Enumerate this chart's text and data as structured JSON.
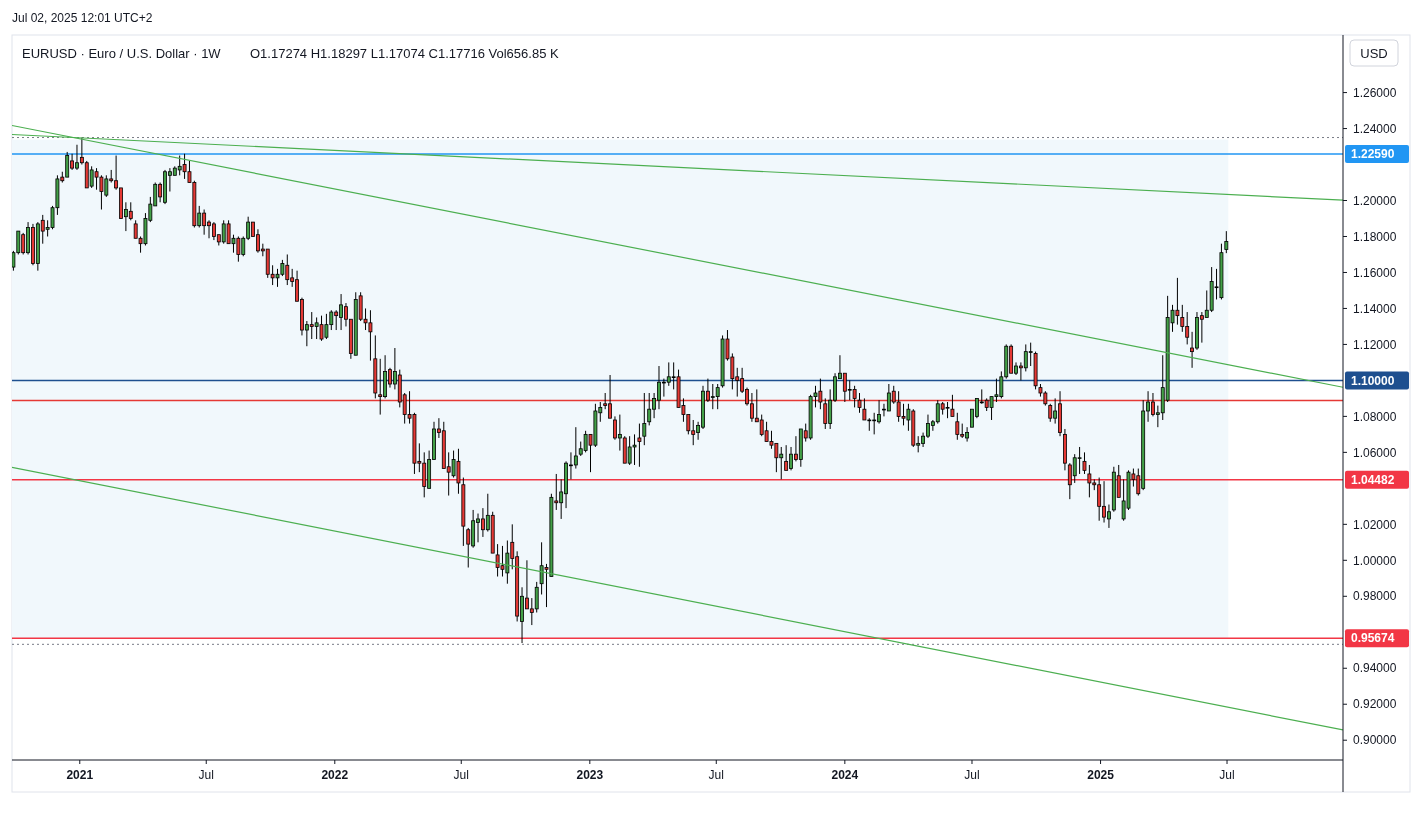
{
  "chart_data": {
    "type": "candlestick",
    "title": "EURUSD · Euro / U.S. Dollar · 1W",
    "subtitle": "O1.17274 H1.18297 L1.17074 C1.17716 Vol656.85 K",
    "ylabel": "USD",
    "annotations": [
      "Jul 02, 2025 12:01 UTC+2"
    ],
    "xlim": [
      "2020-09-26",
      "2025-12-14"
    ],
    "xticks": [
      {
        "value": "2021-01-01",
        "label": "2021"
      },
      {
        "value": "2021-07-01",
        "label": "Jul"
      },
      {
        "value": "2022-01-01",
        "label": "2022"
      },
      {
        "value": "2022-07-01",
        "label": "Jul"
      },
      {
        "value": "2023-01-01",
        "label": "2023"
      },
      {
        "value": "2023-07-01",
        "label": "Jul"
      },
      {
        "value": "2024-01-01",
        "label": "2024"
      },
      {
        "value": "2024-07-01",
        "label": "Jul"
      },
      {
        "value": "2025-01-01",
        "label": "2025"
      },
      {
        "value": "2025-07-01",
        "label": "Jul"
      }
    ],
    "ylim": [
      0.889,
      1.292
    ],
    "yticks": [
      {
        "value": 0.9,
        "label": "0.90000"
      },
      {
        "value": 0.92,
        "label": "0.92000"
      },
      {
        "value": 0.94,
        "label": "0.94000"
      },
      {
        "value": 0.98,
        "label": "0.98000"
      },
      {
        "value": 1.0,
        "label": "1.00000"
      },
      {
        "value": 1.02,
        "label": "1.02000"
      },
      {
        "value": 1.06,
        "label": "1.06000"
      },
      {
        "value": 1.08,
        "label": "1.08000"
      },
      {
        "value": 1.12,
        "label": "1.12000"
      },
      {
        "value": 1.14,
        "label": "1.14000"
      },
      {
        "value": 1.16,
        "label": "1.16000"
      },
      {
        "value": 1.18,
        "label": "1.18000"
      },
      {
        "value": 1.2,
        "label": "1.20000"
      },
      {
        "value": 1.24,
        "label": "1.24000"
      },
      {
        "value": 1.26,
        "label": "1.26000"
      }
    ],
    "x": [
      "2020-09-28",
      "2020-10-05",
      "2020-10-12",
      "2020-10-19",
      "2020-10-26",
      "2020-11-02",
      "2020-11-09",
      "2020-11-16",
      "2020-11-23",
      "2020-11-30",
      "2020-12-07",
      "2020-12-14",
      "2020-12-21",
      "2020-12-28",
      "2021-01-04",
      "2021-01-11",
      "2021-01-18",
      "2021-01-25",
      "2021-02-01",
      "2021-02-08",
      "2021-02-15",
      "2021-02-22",
      "2021-03-01",
      "2021-03-08",
      "2021-03-15",
      "2021-03-22",
      "2021-03-29",
      "2021-04-05",
      "2021-04-12",
      "2021-04-19",
      "2021-04-26",
      "2021-05-03",
      "2021-05-10",
      "2021-05-17",
      "2021-05-24",
      "2021-05-31",
      "2021-06-07",
      "2021-06-14",
      "2021-06-21",
      "2021-06-28",
      "2021-07-05",
      "2021-07-12",
      "2021-07-19",
      "2021-07-26",
      "2021-08-02",
      "2021-08-09",
      "2021-08-16",
      "2021-08-23",
      "2021-08-30",
      "2021-09-06",
      "2021-09-13",
      "2021-09-20",
      "2021-09-27",
      "2021-10-04",
      "2021-10-11",
      "2021-10-18",
      "2021-10-25",
      "2021-11-01",
      "2021-11-08",
      "2021-11-15",
      "2021-11-22",
      "2021-11-29",
      "2021-12-06",
      "2021-12-13",
      "2021-12-20",
      "2021-12-27",
      "2022-01-03",
      "2022-01-10",
      "2022-01-17",
      "2022-01-24",
      "2022-01-31",
      "2022-02-07",
      "2022-02-14",
      "2022-02-21",
      "2022-02-28",
      "2022-03-07",
      "2022-03-14",
      "2022-03-21",
      "2022-03-28",
      "2022-04-04",
      "2022-04-11",
      "2022-04-18",
      "2022-04-25",
      "2022-05-02",
      "2022-05-09",
      "2022-05-16",
      "2022-05-23",
      "2022-05-30",
      "2022-06-06",
      "2022-06-13",
      "2022-06-20",
      "2022-06-27",
      "2022-07-04",
      "2022-07-11",
      "2022-07-18",
      "2022-07-25",
      "2022-08-01",
      "2022-08-08",
      "2022-08-15",
      "2022-08-22",
      "2022-08-29",
      "2022-09-05",
      "2022-09-12",
      "2022-09-19",
      "2022-09-26",
      "2022-10-03",
      "2022-10-10",
      "2022-10-17",
      "2022-10-24",
      "2022-10-31",
      "2022-11-07",
      "2022-11-14",
      "2022-11-21",
      "2022-11-28",
      "2022-12-05",
      "2022-12-12",
      "2022-12-19",
      "2022-12-26",
      "2023-01-02",
      "2023-01-09",
      "2023-01-16",
      "2023-01-23",
      "2023-01-30",
      "2023-02-06",
      "2023-02-13",
      "2023-02-20",
      "2023-02-27",
      "2023-03-06",
      "2023-03-13",
      "2023-03-20",
      "2023-03-27",
      "2023-04-03",
      "2023-04-10",
      "2023-04-17",
      "2023-04-24",
      "2023-05-01",
      "2023-05-08",
      "2023-05-15",
      "2023-05-22",
      "2023-05-29",
      "2023-06-05",
      "2023-06-12",
      "2023-06-19",
      "2023-06-26",
      "2023-07-03",
      "2023-07-10",
      "2023-07-17",
      "2023-07-24",
      "2023-07-31",
      "2023-08-07",
      "2023-08-14",
      "2023-08-21",
      "2023-08-28",
      "2023-09-04",
      "2023-09-11",
      "2023-09-18",
      "2023-09-25",
      "2023-10-02",
      "2023-10-09",
      "2023-10-16",
      "2023-10-23",
      "2023-10-30",
      "2023-11-06",
      "2023-11-13",
      "2023-11-20",
      "2023-11-27",
      "2023-12-04",
      "2023-12-11",
      "2023-12-18",
      "2023-12-25",
      "2024-01-01",
      "2024-01-08",
      "2024-01-15",
      "2024-01-22",
      "2024-01-29",
      "2024-02-05",
      "2024-02-12",
      "2024-02-19",
      "2024-02-26",
      "2024-03-04",
      "2024-03-11",
      "2024-03-18",
      "2024-03-25",
      "2024-04-01",
      "2024-04-08",
      "2024-04-15",
      "2024-04-22",
      "2024-04-29",
      "2024-05-06",
      "2024-05-13",
      "2024-05-20",
      "2024-05-27",
      "2024-06-03",
      "2024-06-10",
      "2024-06-17",
      "2024-06-24",
      "2024-07-01",
      "2024-07-08",
      "2024-07-15",
      "2024-07-22",
      "2024-07-29",
      "2024-08-05",
      "2024-08-12",
      "2024-08-19",
      "2024-08-26",
      "2024-09-02",
      "2024-09-09",
      "2024-09-16",
      "2024-09-23",
      "2024-09-30",
      "2024-10-07",
      "2024-10-14",
      "2024-10-21",
      "2024-10-28",
      "2024-11-04",
      "2024-11-11",
      "2024-11-18",
      "2024-11-25",
      "2024-12-02",
      "2024-12-09",
      "2024-12-16",
      "2024-12-23",
      "2024-12-30",
      "2025-01-06",
      "2025-01-13",
      "2025-01-20",
      "2025-01-27",
      "2025-02-03",
      "2025-02-10",
      "2025-02-17",
      "2025-02-24",
      "2025-03-03",
      "2025-03-10",
      "2025-03-17",
      "2025-03-24",
      "2025-03-31",
      "2025-04-07",
      "2025-04-14",
      "2025-04-21",
      "2025-04-28",
      "2025-05-05",
      "2025-05-12",
      "2025-05-19",
      "2025-05-26",
      "2025-06-02",
      "2025-06-09",
      "2025-06-16",
      "2025-06-23",
      "2025-06-30"
    ],
    "ohlc": [
      [
        1.163,
        1.172,
        1.161,
        1.171
      ],
      [
        1.171,
        1.183,
        1.17,
        1.183
      ],
      [
        1.181,
        1.182,
        1.17,
        1.171
      ],
      [
        1.171,
        1.188,
        1.17,
        1.185
      ],
      [
        1.185,
        1.187,
        1.164,
        1.165
      ],
      [
        1.165,
        1.188,
        1.161,
        1.187
      ],
      [
        1.189,
        1.192,
        1.176,
        1.183
      ],
      [
        1.184,
        1.189,
        1.18,
        1.185
      ],
      [
        1.185,
        1.197,
        1.184,
        1.196
      ],
      [
        1.196,
        1.214,
        1.192,
        1.212
      ],
      [
        1.213,
        1.216,
        1.21,
        1.211
      ],
      [
        1.213,
        1.227,
        1.213,
        1.225
      ],
      [
        1.222,
        1.226,
        1.217,
        1.218
      ],
      [
        1.218,
        1.231,
        1.217,
        1.221
      ],
      [
        1.224,
        1.235,
        1.22,
        1.221
      ],
      [
        1.221,
        1.222,
        1.207,
        1.207
      ],
      [
        1.208,
        1.219,
        1.207,
        1.217
      ],
      [
        1.216,
        1.218,
        1.206,
        1.213
      ],
      [
        1.213,
        1.214,
        1.195,
        1.205
      ],
      [
        1.203,
        1.214,
        1.202,
        1.212
      ],
      [
        1.212,
        1.217,
        1.21,
        1.211
      ],
      [
        1.211,
        1.225,
        1.206,
        1.207
      ],
      [
        1.207,
        1.207,
        1.19,
        1.19
      ],
      [
        1.191,
        1.199,
        1.183,
        1.195
      ],
      [
        1.194,
        1.199,
        1.189,
        1.19
      ],
      [
        1.187,
        1.189,
        1.179,
        1.179
      ],
      [
        1.179,
        1.18,
        1.171,
        1.176
      ],
      [
        1.176,
        1.193,
        1.175,
        1.19
      ],
      [
        1.189,
        1.202,
        1.188,
        1.198
      ],
      [
        1.197,
        1.21,
        1.197,
        1.209
      ],
      [
        1.209,
        1.21,
        1.199,
        1.202
      ],
      [
        1.199,
        1.217,
        1.198,
        1.216
      ],
      [
        1.214,
        1.218,
        1.205,
        1.216
      ],
      [
        1.214,
        1.219,
        1.214,
        1.218
      ],
      [
        1.217,
        1.225,
        1.214,
        1.219
      ],
      [
        1.22,
        1.226,
        1.212,
        1.216
      ],
      [
        1.216,
        1.222,
        1.21,
        1.21
      ],
      [
        1.21,
        1.211,
        1.185,
        1.186
      ],
      [
        1.186,
        1.197,
        1.185,
        1.193
      ],
      [
        1.193,
        1.195,
        1.181,
        1.186
      ],
      [
        1.188,
        1.189,
        1.179,
        1.186
      ],
      [
        1.187,
        1.188,
        1.178,
        1.18
      ],
      [
        1.181,
        1.181,
        1.175,
        1.177
      ],
      [
        1.177,
        1.189,
        1.176,
        1.187
      ],
      [
        1.187,
        1.189,
        1.176,
        1.176
      ],
      [
        1.176,
        1.181,
        1.171,
        1.179
      ],
      [
        1.179,
        1.18,
        1.166,
        1.17
      ],
      [
        1.17,
        1.18,
        1.169,
        1.179
      ],
      [
        1.179,
        1.191,
        1.178,
        1.188
      ],
      [
        1.188,
        1.188,
        1.18,
        1.18
      ],
      [
        1.181,
        1.184,
        1.171,
        1.172
      ],
      [
        1.173,
        1.176,
        1.169,
        1.172
      ],
      [
        1.173,
        1.173,
        1.157,
        1.159
      ],
      [
        1.159,
        1.164,
        1.153,
        1.157
      ],
      [
        1.157,
        1.162,
        1.152,
        1.159
      ],
      [
        1.159,
        1.167,
        1.158,
        1.165
      ],
      [
        1.164,
        1.17,
        1.153,
        1.156
      ],
      [
        1.157,
        1.162,
        1.152,
        1.155
      ],
      [
        1.156,
        1.161,
        1.144,
        1.144
      ],
      [
        1.145,
        1.146,
        1.125,
        1.128
      ],
      [
        1.128,
        1.133,
        1.119,
        1.131
      ],
      [
        1.131,
        1.138,
        1.123,
        1.13
      ],
      [
        1.13,
        1.135,
        1.123,
        1.132
      ],
      [
        1.131,
        1.136,
        1.122,
        1.123
      ],
      [
        1.124,
        1.137,
        1.123,
        1.131
      ],
      [
        1.131,
        1.139,
        1.128,
        1.138
      ],
      [
        1.138,
        1.139,
        1.128,
        1.136
      ],
      [
        1.135,
        1.148,
        1.128,
        1.142
      ],
      [
        1.141,
        1.143,
        1.13,
        1.134
      ],
      [
        1.134,
        1.134,
        1.112,
        1.115
      ],
      [
        1.114,
        1.149,
        1.114,
        1.145
      ],
      [
        1.147,
        1.149,
        1.133,
        1.134
      ],
      [
        1.134,
        1.14,
        1.128,
        1.132
      ],
      [
        1.132,
        1.139,
        1.111,
        1.127
      ],
      [
        1.112,
        1.125,
        1.09,
        1.093
      ],
      [
        1.092,
        1.112,
        1.081,
        1.091
      ],
      [
        1.091,
        1.114,
        1.09,
        1.105
      ],
      [
        1.106,
        1.107,
        1.096,
        1.098
      ],
      [
        1.098,
        1.118,
        1.095,
        1.105
      ],
      [
        1.103,
        1.106,
        1.085,
        1.088
      ],
      [
        1.092,
        1.093,
        1.076,
        1.081
      ],
      [
        1.081,
        1.094,
        1.076,
        1.079
      ],
      [
        1.081,
        1.082,
        1.048,
        1.054
      ],
      [
        1.055,
        1.065,
        1.049,
        1.054
      ],
      [
        1.054,
        1.06,
        1.035,
        1.041
      ],
      [
        1.04,
        1.061,
        1.04,
        1.056
      ],
      [
        1.056,
        1.077,
        1.056,
        1.073
      ],
      [
        1.073,
        1.079,
        1.068,
        1.071
      ],
      [
        1.072,
        1.077,
        1.051,
        1.051
      ],
      [
        1.052,
        1.06,
        1.036,
        1.049
      ],
      [
        1.047,
        1.061,
        1.046,
        1.056
      ],
      [
        1.055,
        1.062,
        1.037,
        1.043
      ],
      [
        1.042,
        1.046,
        1.008,
        1.019
      ],
      [
        1.017,
        1.018,
        0.996,
        1.009
      ],
      [
        1.008,
        1.028,
        1.007,
        1.022
      ],
      [
        1.021,
        1.026,
        1.01,
        1.023
      ],
      [
        1.023,
        1.029,
        1.013,
        1.017
      ],
      [
        1.017,
        1.037,
        1.016,
        1.025
      ],
      [
        1.025,
        1.027,
        1.004,
        1.004
      ],
      [
        1.003,
        1.009,
        0.991,
        0.996
      ],
      [
        0.997,
        1.008,
        0.991,
        0.995
      ],
      [
        0.993,
        1.011,
        0.987,
        1.004
      ],
      [
        1.01,
        1.02,
        0.995,
        1.001
      ],
      [
        1.002,
        1.005,
        0.966,
        0.969
      ],
      [
        0.966,
        0.985,
        0.954,
        0.98
      ],
      [
        0.979,
        1.0,
        0.973,
        0.973
      ],
      [
        0.973,
        0.979,
        0.964,
        0.971
      ],
      [
        0.973,
        0.988,
        0.971,
        0.985
      ],
      [
        0.987,
        1.01,
        0.981,
        0.997
      ],
      [
        0.996,
        0.998,
        0.974,
        0.995
      ],
      [
        0.991,
        1.037,
        0.991,
        1.035
      ],
      [
        1.033,
        1.048,
        1.028,
        1.032
      ],
      [
        1.032,
        1.045,
        1.023,
        1.038
      ],
      [
        1.037,
        1.055,
        1.029,
        1.054
      ],
      [
        1.053,
        1.06,
        1.045,
        1.053
      ],
      [
        1.053,
        1.074,
        1.051,
        1.058
      ],
      [
        1.059,
        1.066,
        1.058,
        1.062
      ],
      [
        1.061,
        1.072,
        1.06,
        1.07
      ],
      [
        1.07,
        1.07,
        1.049,
        1.064
      ],
      [
        1.064,
        1.087,
        1.063,
        1.083
      ],
      [
        1.082,
        1.088,
        1.077,
        1.085
      ],
      [
        1.087,
        1.093,
        1.084,
        1.086
      ],
      [
        1.087,
        1.103,
        1.079,
        1.079
      ],
      [
        1.078,
        1.08,
        1.067,
        1.068
      ],
      [
        1.068,
        1.081,
        1.061,
        1.07
      ],
      [
        1.068,
        1.069,
        1.054,
        1.054
      ],
      [
        1.054,
        1.069,
        1.053,
        1.063
      ],
      [
        1.063,
        1.07,
        1.053,
        1.064
      ],
      [
        1.068,
        1.076,
        1.052,
        1.066
      ],
      [
        1.069,
        1.093,
        1.064,
        1.076
      ],
      [
        1.077,
        1.093,
        1.075,
        1.084
      ],
      [
        1.084,
        1.093,
        1.079,
        1.09
      ],
      [
        1.089,
        1.108,
        1.084,
        1.099
      ],
      [
        1.099,
        1.101,
        1.091,
        1.099
      ],
      [
        1.099,
        1.11,
        1.097,
        1.102
      ],
      [
        1.102,
        1.11,
        1.095,
        1.102
      ],
      [
        1.102,
        1.106,
        1.085,
        1.085
      ],
      [
        1.086,
        1.09,
        1.077,
        1.081
      ],
      [
        1.081,
        1.081,
        1.07,
        1.072
      ],
      [
        1.072,
        1.078,
        1.064,
        1.07
      ],
      [
        1.071,
        1.077,
        1.067,
        1.075
      ],
      [
        1.074,
        1.097,
        1.073,
        1.094
      ],
      [
        1.094,
        1.101,
        1.088,
        1.089
      ],
      [
        1.091,
        1.098,
        1.084,
        1.091
      ],
      [
        1.091,
        1.098,
        1.084,
        1.096
      ],
      [
        1.097,
        1.125,
        1.096,
        1.123
      ],
      [
        1.123,
        1.128,
        1.111,
        1.112
      ],
      [
        1.113,
        1.115,
        1.095,
        1.101
      ],
      [
        1.102,
        1.107,
        1.091,
        1.1
      ],
      [
        1.101,
        1.107,
        1.093,
        1.094
      ],
      [
        1.095,
        1.096,
        1.086,
        1.087
      ],
      [
        1.087,
        1.093,
        1.077,
        1.079
      ],
      [
        1.079,
        1.095,
        1.077,
        1.077
      ],
      [
        1.078,
        1.081,
        1.069,
        1.07
      ],
      [
        1.072,
        1.077,
        1.066,
        1.066
      ],
      [
        1.066,
        1.072,
        1.062,
        1.064
      ],
      [
        1.065,
        1.065,
        1.049,
        1.057
      ],
      [
        1.057,
        1.063,
        1.045,
        1.059
      ],
      [
        1.055,
        1.064,
        1.05,
        1.05
      ],
      [
        1.051,
        1.063,
        1.05,
        1.059
      ],
      [
        1.059,
        1.069,
        1.055,
        1.056
      ],
      [
        1.056,
        1.073,
        1.052,
        1.073
      ],
      [
        1.072,
        1.076,
        1.066,
        1.068
      ],
      [
        1.068,
        1.092,
        1.067,
        1.091
      ],
      [
        1.091,
        1.097,
        1.085,
        1.093
      ],
      [
        1.094,
        1.101,
        1.084,
        1.088
      ],
      [
        1.087,
        1.09,
        1.073,
        1.076
      ],
      [
        1.076,
        1.095,
        1.073,
        1.089
      ],
      [
        1.089,
        1.104,
        1.088,
        1.102
      ],
      [
        1.101,
        1.114,
        1.101,
        1.104
      ],
      [
        1.104,
        1.104,
        1.088,
        1.094
      ],
      [
        1.095,
        1.1,
        1.089,
        1.095
      ],
      [
        1.095,
        1.097,
        1.085,
        1.09
      ],
      [
        1.089,
        1.093,
        1.082,
        1.085
      ],
      [
        1.084,
        1.09,
        1.078,
        1.078
      ],
      [
        1.078,
        1.079,
        1.072,
        1.078
      ],
      [
        1.078,
        1.082,
        1.07,
        1.078
      ],
      [
        1.077,
        1.089,
        1.076,
        1.081
      ],
      [
        1.084,
        1.087,
        1.08,
        1.084
      ],
      [
        1.083,
        1.098,
        1.083,
        1.093
      ],
      [
        1.094,
        1.097,
        1.087,
        1.088
      ],
      [
        1.088,
        1.094,
        1.077,
        1.08
      ],
      [
        1.08,
        1.087,
        1.075,
        1.079
      ],
      [
        1.078,
        1.087,
        1.072,
        1.084
      ],
      [
        1.083,
        1.084,
        1.063,
        1.064
      ],
      [
        1.064,
        1.069,
        1.06,
        1.065
      ],
      [
        1.065,
        1.071,
        1.063,
        1.069
      ],
      [
        1.069,
        1.081,
        1.068,
        1.076
      ],
      [
        1.075,
        1.078,
        1.072,
        1.077
      ],
      [
        1.077,
        1.089,
        1.076,
        1.087
      ],
      [
        1.087,
        1.088,
        1.081,
        1.084
      ],
      [
        1.085,
        1.088,
        1.079,
        1.085
      ],
      [
        1.084,
        1.092,
        1.08,
        1.08
      ],
      [
        1.077,
        1.082,
        1.067,
        1.07
      ],
      [
        1.07,
        1.076,
        1.068,
        1.069
      ],
      [
        1.068,
        1.074,
        1.066,
        1.071
      ],
      [
        1.074,
        1.084,
        1.074,
        1.084
      ],
      [
        1.08,
        1.09,
        1.079,
        1.09
      ],
      [
        1.088,
        1.095,
        1.087,
        1.088
      ],
      [
        1.089,
        1.09,
        1.083,
        1.085
      ],
      [
        1.085,
        1.091,
        1.078,
        1.091
      ],
      [
        1.091,
        1.101,
        1.088,
        1.092
      ],
      [
        1.091,
        1.105,
        1.09,
        1.102
      ],
      [
        1.102,
        1.12,
        1.101,
        1.119
      ],
      [
        1.119,
        1.12,
        1.104,
        1.104
      ],
      [
        1.104,
        1.11,
        1.103,
        1.108
      ],
      [
        1.108,
        1.11,
        1.1,
        1.107
      ],
      [
        1.107,
        1.12,
        1.105,
        1.116
      ],
      [
        1.116,
        1.121,
        1.108,
        1.116
      ],
      [
        1.115,
        1.116,
        1.095,
        1.097
      ],
      [
        1.096,
        1.098,
        1.091,
        1.093
      ],
      [
        1.093,
        1.094,
        1.086,
        1.087
      ],
      [
        1.086,
        1.087,
        1.077,
        1.079
      ],
      [
        1.079,
        1.09,
        1.076,
        1.083
      ],
      [
        1.087,
        1.094,
        1.069,
        1.071
      ],
      [
        1.07,
        1.073,
        1.05,
        1.054
      ],
      [
        1.053,
        1.054,
        1.034,
        1.042
      ],
      [
        1.047,
        1.059,
        1.043,
        1.057
      ],
      [
        1.057,
        1.063,
        1.048,
        1.057
      ],
      [
        1.055,
        1.06,
        1.048,
        1.05
      ],
      [
        1.048,
        1.053,
        1.035,
        1.043
      ],
      [
        1.043,
        1.045,
        1.039,
        1.042
      ],
      [
        1.042,
        1.046,
        1.022,
        1.03
      ],
      [
        1.03,
        1.044,
        1.021,
        1.024
      ],
      [
        1.023,
        1.031,
        1.018,
        1.027
      ],
      [
        1.028,
        1.052,
        1.027,
        1.049
      ],
      [
        1.047,
        1.053,
        1.035,
        1.035
      ],
      [
        1.023,
        1.045,
        1.022,
        1.033
      ],
      [
        1.029,
        1.05,
        1.028,
        1.049
      ],
      [
        1.048,
        1.051,
        1.041,
        1.045
      ],
      [
        1.047,
        1.051,
        1.036,
        1.037
      ],
      [
        1.04,
        1.089,
        1.039,
        1.083
      ],
      [
        1.083,
        1.094,
        1.077,
        1.088
      ],
      [
        1.088,
        1.093,
        1.08,
        1.081
      ],
      [
        1.081,
        1.086,
        1.074,
        1.082
      ],
      [
        1.082,
        1.114,
        1.078,
        1.096
      ],
      [
        1.089,
        1.147,
        1.088,
        1.135
      ],
      [
        1.132,
        1.142,
        1.127,
        1.139
      ],
      [
        1.139,
        1.157,
        1.131,
        1.136
      ],
      [
        1.135,
        1.142,
        1.127,
        1.13
      ],
      [
        1.13,
        1.138,
        1.12,
        1.124
      ],
      [
        1.118,
        1.127,
        1.107,
        1.116
      ],
      [
        1.118,
        1.138,
        1.117,
        1.135
      ],
      [
        1.136,
        1.138,
        1.121,
        1.134
      ],
      [
        1.135,
        1.15,
        1.135,
        1.139
      ],
      [
        1.139,
        1.163,
        1.138,
        1.155
      ],
      [
        1.152,
        1.162,
        1.145,
        1.152
      ],
      [
        1.146,
        1.176,
        1.145,
        1.171
      ],
      [
        1.17274,
        1.18297,
        1.17074,
        1.17716
      ]
    ],
    "series": [
      {
        "type": "line",
        "x": [
          "2020-09-26",
          "2025-12-14"
        ],
        "values": [
          1.2367,
          1.2002
        ],
        "color": "#4caf50"
      },
      {
        "type": "line",
        "x": [
          "2020-09-26",
          "2025-12-14"
        ],
        "values": [
          1.2417,
          1.0962
        ],
        "color": "#4caf50"
      },
      {
        "type": "line",
        "x": [
          "2020-09-26",
          "2025-12-14"
        ],
        "values": [
          1.0517,
          0.9057
        ],
        "color": "#4caf50"
      }
    ],
    "bands": [
      {
        "axis": "y",
        "from": 0.9567,
        "to": 1.2339,
        "color": "#f1f8fc"
      }
    ],
    "ref_lines": [
      {
        "axis": "y",
        "value": 1.2259,
        "label": "1.22590",
        "color": "#2196f3"
      },
      {
        "axis": "y",
        "value": 1.1,
        "label": "1.10000",
        "color": "#1e4f8f"
      },
      {
        "axis": "y",
        "value": 1.0889,
        "color": "#e53935"
      },
      {
        "axis": "y",
        "value": 1.04482,
        "label": "1.04482",
        "color": "#f23645"
      },
      {
        "axis": "y",
        "value": 0.95674,
        "label": "0.95674",
        "color": "#f23645"
      },
      {
        "axis": "y",
        "value": 1.235,
        "color": "#787b86",
        "line_style": "dotted"
      },
      {
        "axis": "y",
        "value": 0.9533,
        "color": "#787b86",
        "line_style": "dotted"
      }
    ]
  }
}
